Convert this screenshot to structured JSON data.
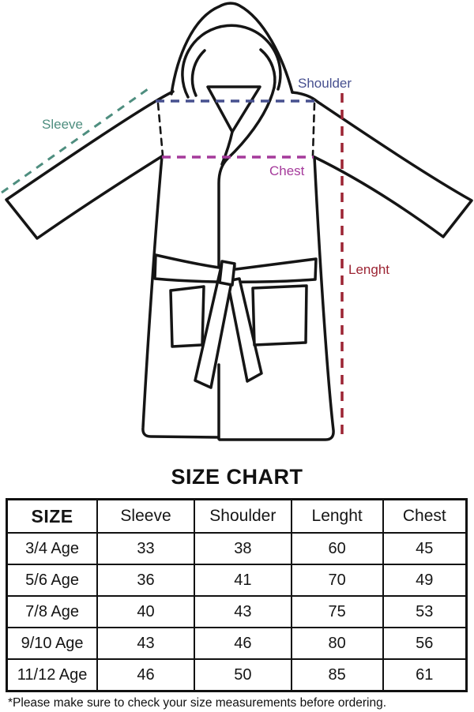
{
  "diagram": {
    "line_color": "#151515",
    "labels": {
      "sleeve": {
        "text": "Sleeve",
        "color": "#4e8e7f"
      },
      "shoulder": {
        "text": "Shoulder",
        "color": "#47508f"
      },
      "chest": {
        "text": "Chest",
        "color": "#a53a9b"
      },
      "length": {
        "text": "Lenght",
        "color": "#9c2433"
      }
    }
  },
  "section_title": "SIZE CHART",
  "table": {
    "columns": [
      "SIZE",
      "Sleeve",
      "Shoulder",
      "Lenght",
      "Chest"
    ],
    "rows": [
      [
        "3/4 Age",
        "33",
        "38",
        "60",
        "45"
      ],
      [
        "5/6 Age",
        "36",
        "41",
        "70",
        "49"
      ],
      [
        "7/8 Age",
        "40",
        "43",
        "75",
        "53"
      ],
      [
        "9/10 Age",
        "43",
        "46",
        "80",
        "56"
      ],
      [
        "11/12 Age",
        "46",
        "50",
        "85",
        "61"
      ]
    ]
  },
  "footnote": "*Please make sure to check your size measurements before ordering."
}
